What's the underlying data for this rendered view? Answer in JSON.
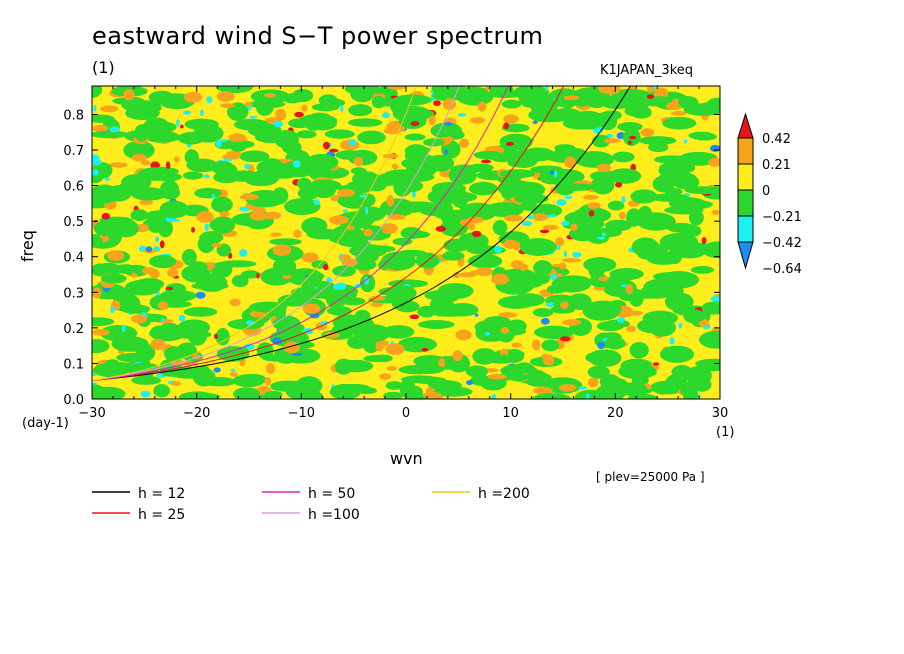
{
  "title": "eastward wind S−T power spectrum",
  "units_top_left": "(1)",
  "experiment": "K1JAPAN_3keq",
  "level_note": "[ plev=25000 Pa ]",
  "colors": {
    "red": "#e8141c",
    "orange": "#f7a41c",
    "yellow": "#ffee1c",
    "green": "#2cd82c",
    "cyan": "#1cf0f0",
    "blue": "#1c8cf0"
  },
  "chart_data": {
    "type": "heatmap",
    "title": "eastward wind S−T power spectrum",
    "xlabel": "wvn",
    "ylabel": "freq",
    "x_units": "(1)",
    "y_units": "(day-1)",
    "xlim": [
      -30,
      30
    ],
    "ylim": [
      0,
      0.88
    ],
    "x_ticks": [
      -30,
      -20,
      -10,
      0,
      10,
      20,
      30
    ],
    "x_tick_labels": [
      "−30",
      "−20",
      "−10",
      "0",
      "10",
      "20",
      "30"
    ],
    "y_ticks": [
      0.0,
      0.1,
      0.2,
      0.3,
      0.4,
      0.5,
      0.6,
      0.7,
      0.8
    ],
    "y_tick_labels": [
      "0.0",
      "0.1",
      "0.2",
      "0.3",
      "0.4",
      "0.5",
      "0.6",
      "0.7",
      "0.8"
    ],
    "colorbar": {
      "levels": [
        0.42,
        0.21,
        0,
        -0.21,
        -0.42,
        -0.64
      ],
      "labels": [
        "0.42",
        "0.21",
        "0",
        "−0.21",
        "−0.42",
        "−0.64"
      ],
      "colors": [
        "#e8141c",
        "#f7a41c",
        "#ffee1c",
        "#2cd82c",
        "#1cf0f0",
        "#1c8cf0"
      ]
    },
    "dispersion_curves": [
      {
        "label": "h = 12",
        "h": 12,
        "color": "#000000"
      },
      {
        "label": "h = 25",
        "h": 25,
        "color": "#e8141c"
      },
      {
        "label": "h = 50",
        "h": 50,
        "color": "#e020b8"
      },
      {
        "label": "h =100",
        "h": 100,
        "color": "#dca0dc"
      },
      {
        "label": "h =200",
        "h": 200,
        "color": "#f0c81c"
      }
    ],
    "curve_min_freq": 0.052,
    "field_description_levels": "noisy field with values mostly between -0.21 and 0.21"
  }
}
